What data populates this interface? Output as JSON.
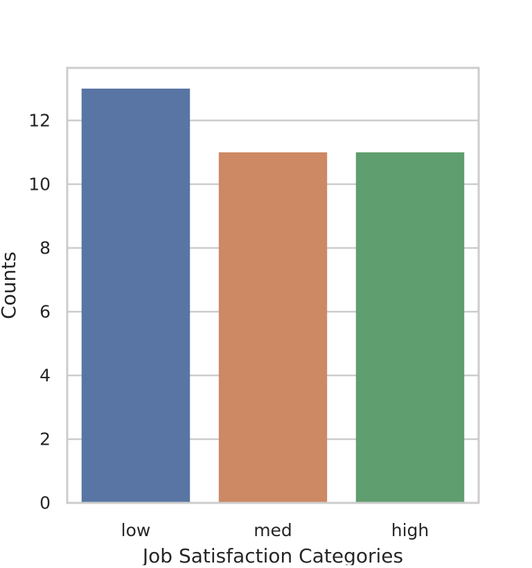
{
  "chart_data": {
    "type": "bar",
    "title": "",
    "xlabel": "Job Satisfaction Categories",
    "ylabel": "Counts",
    "categories": [
      "low",
      "med",
      "high"
    ],
    "values": [
      13,
      11,
      11
    ],
    "colors": [
      "#5975a4",
      "#cc8963",
      "#5f9e6e"
    ],
    "ylim": [
      0,
      13.65
    ],
    "yticks": [
      0,
      2,
      4,
      6,
      8,
      10,
      12
    ],
    "grid": true,
    "grid_axis": "y",
    "legend": "none"
  }
}
